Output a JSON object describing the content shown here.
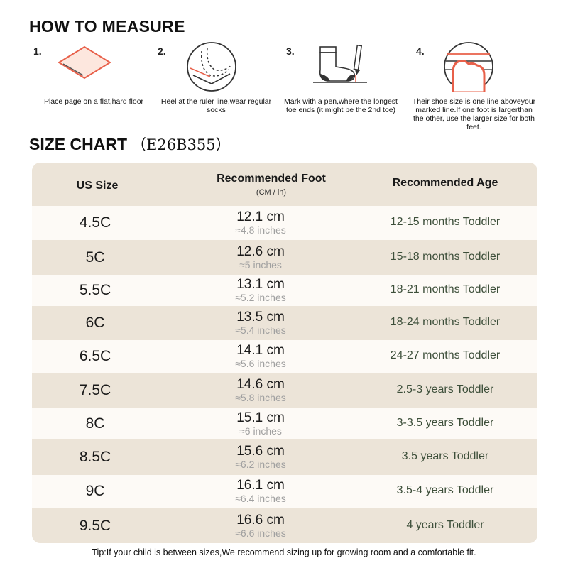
{
  "measure": {
    "title": "HOW TO MEASURE",
    "steps": [
      {
        "num": "1.",
        "caption": "Place page on a flat,hard floor",
        "icon": "paper-icon"
      },
      {
        "num": "2.",
        "caption": "Heel at the ruler line,wear regular socks",
        "icon": "heel-icon"
      },
      {
        "num": "3.",
        "caption": "Mark with a pen,where the longest toe ends (it might be the 2nd toe)",
        "icon": "sock-pen-icon"
      },
      {
        "num": "4.",
        "caption": "Their shoe size is one line aboveyour marked line.If one foot is largerthan the other, use the larger size for both feet.",
        "icon": "toe-line-icon"
      }
    ]
  },
  "size_chart": {
    "title": "SIZE CHART",
    "code": "（E26B355）",
    "headers": {
      "us_size": "US Size",
      "foot": "Recommended Foot",
      "foot_unit": "(CM / in)",
      "age": "Recommended Age"
    },
    "rows": [
      {
        "us": "4.5C",
        "cm": "12.1 cm",
        "in": "≈4.8 inches",
        "age": "12-15 months Toddler"
      },
      {
        "us": "5C",
        "cm": "12.6 cm",
        "in": "≈5 inches",
        "age": "15-18 months Toddler"
      },
      {
        "us": "5.5C",
        "cm": "13.1 cm",
        "in": "≈5.2 inches",
        "age": "18-21 months Toddler"
      },
      {
        "us": "6C",
        "cm": "13.5 cm",
        "in": "≈5.4 inches",
        "age": "18-24 months Toddler"
      },
      {
        "us": "6.5C",
        "cm": "14.1 cm",
        "in": "≈5.6 inches",
        "age": "24-27 months Toddler"
      },
      {
        "us": "7.5C",
        "cm": "14.6 cm",
        "in": "≈5.8 inches",
        "age": "2.5-3 years Toddler"
      },
      {
        "us": "8C",
        "cm": "15.1 cm",
        "in": "≈6 inches",
        "age": "3-3.5 years Toddler"
      },
      {
        "us": "8.5C",
        "cm": "15.6 cm",
        "in": "≈6.2 inches",
        "age": "3.5 years Toddler"
      },
      {
        "us": "9C",
        "cm": "16.1 cm",
        "in": "≈6.4 inches",
        "age": "3.5-4 years Toddler"
      },
      {
        "us": "9.5C",
        "cm": "16.6 cm",
        "in": "≈6.6 inches",
        "age": "4 years Toddler"
      }
    ]
  },
  "tip": "Tip:If your child is between sizes,We recommend sizing up for growing room and a comfortable fit.",
  "colors": {
    "accent": "#e8604a",
    "row_light": "#fdfaf6",
    "row_dark": "#ece4d8",
    "age_text": "#3d4f3a"
  }
}
